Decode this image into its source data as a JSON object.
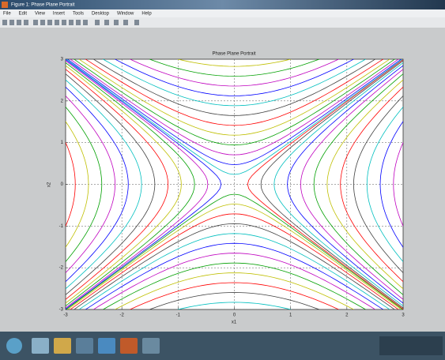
{
  "window": {
    "title": "Figure 1: Phase Plane Portrait",
    "menu": [
      "File",
      "Edit",
      "View",
      "Insert",
      "Tools",
      "Desktop",
      "Window",
      "Help"
    ]
  },
  "chart_data": {
    "type": "line",
    "title": "Phase Plane Portrait",
    "x_label": "x1",
    "y_label": "x2",
    "xlim": [
      -3,
      3
    ],
    "ylim": [
      -3,
      3
    ],
    "xticks": [
      -3,
      -2,
      -1,
      0,
      1,
      2,
      3
    ],
    "yticks": [
      -3,
      -2,
      -1,
      0,
      1,
      2,
      3
    ],
    "grid": true
  }
}
